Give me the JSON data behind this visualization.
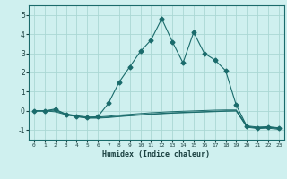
{
  "title": "",
  "xlabel": "Humidex (Indice chaleur)",
  "background_color": "#cff0ef",
  "grid_color": "#aad8d4",
  "line_color": "#1a6b6b",
  "xlim": [
    -0.5,
    23.5
  ],
  "ylim": [
    -1.5,
    5.5
  ],
  "yticks": [
    -1,
    0,
    1,
    2,
    3,
    4,
    5
  ],
  "xticks": [
    0,
    1,
    2,
    3,
    4,
    5,
    6,
    7,
    8,
    9,
    10,
    11,
    12,
    13,
    14,
    15,
    16,
    17,
    18,
    19,
    20,
    21,
    22,
    23
  ],
  "series": [
    {
      "x": [
        0,
        1,
        2,
        3,
        4,
        5,
        6,
        7,
        8,
        9,
        10,
        11,
        12,
        13,
        14,
        15,
        16,
        17,
        18,
        19,
        20,
        21,
        22,
        23
      ],
      "y": [
        0.0,
        0.0,
        0.1,
        -0.2,
        -0.3,
        -0.35,
        -0.3,
        0.4,
        1.5,
        2.3,
        3.1,
        3.7,
        4.8,
        3.6,
        2.5,
        4.1,
        3.0,
        2.65,
        2.1,
        0.3,
        -0.8,
        -0.9,
        -0.85,
        -0.9
      ],
      "marker": "D",
      "markersize": 2.5
    },
    {
      "x": [
        0,
        1,
        2,
        3,
        4,
        5,
        6,
        7,
        8,
        9,
        10,
        11,
        12,
        13,
        14,
        15,
        16,
        17,
        18,
        19,
        20,
        21,
        22,
        23
      ],
      "y": [
        0.0,
        0.0,
        0.05,
        -0.15,
        -0.25,
        -0.32,
        -0.32,
        -0.28,
        -0.22,
        -0.18,
        -0.14,
        -0.1,
        -0.07,
        -0.04,
        -0.02,
        0.0,
        0.02,
        0.04,
        0.05,
        0.05,
        -0.78,
        -0.84,
        -0.82,
        -0.88
      ],
      "marker": null,
      "markersize": 0
    },
    {
      "x": [
        0,
        1,
        2,
        3,
        4,
        5,
        6,
        7,
        8,
        9,
        10,
        11,
        12,
        13,
        14,
        15,
        16,
        17,
        18,
        19,
        20,
        21,
        22,
        23
      ],
      "y": [
        0.0,
        0.0,
        0.0,
        -0.18,
        -0.28,
        -0.36,
        -0.36,
        -0.32,
        -0.28,
        -0.24,
        -0.2,
        -0.16,
        -0.13,
        -0.1,
        -0.08,
        -0.06,
        -0.04,
        -0.02,
        0.0,
        0.0,
        -0.82,
        -0.88,
        -0.86,
        -0.92
      ],
      "marker": null,
      "markersize": 0
    },
    {
      "x": [
        0,
        1,
        2,
        3,
        4,
        5,
        6,
        7,
        8,
        9,
        10,
        11,
        12,
        13,
        14,
        15,
        16,
        17,
        18,
        19,
        20,
        21,
        22,
        23
      ],
      "y": [
        0.0,
        0.0,
        -0.05,
        -0.2,
        -0.3,
        -0.38,
        -0.38,
        -0.35,
        -0.3,
        -0.26,
        -0.22,
        -0.18,
        -0.15,
        -0.12,
        -0.1,
        -0.08,
        -0.06,
        -0.04,
        -0.02,
        0.0,
        -0.85,
        -0.92,
        -0.9,
        -0.96
      ],
      "marker": null,
      "markersize": 0
    }
  ]
}
